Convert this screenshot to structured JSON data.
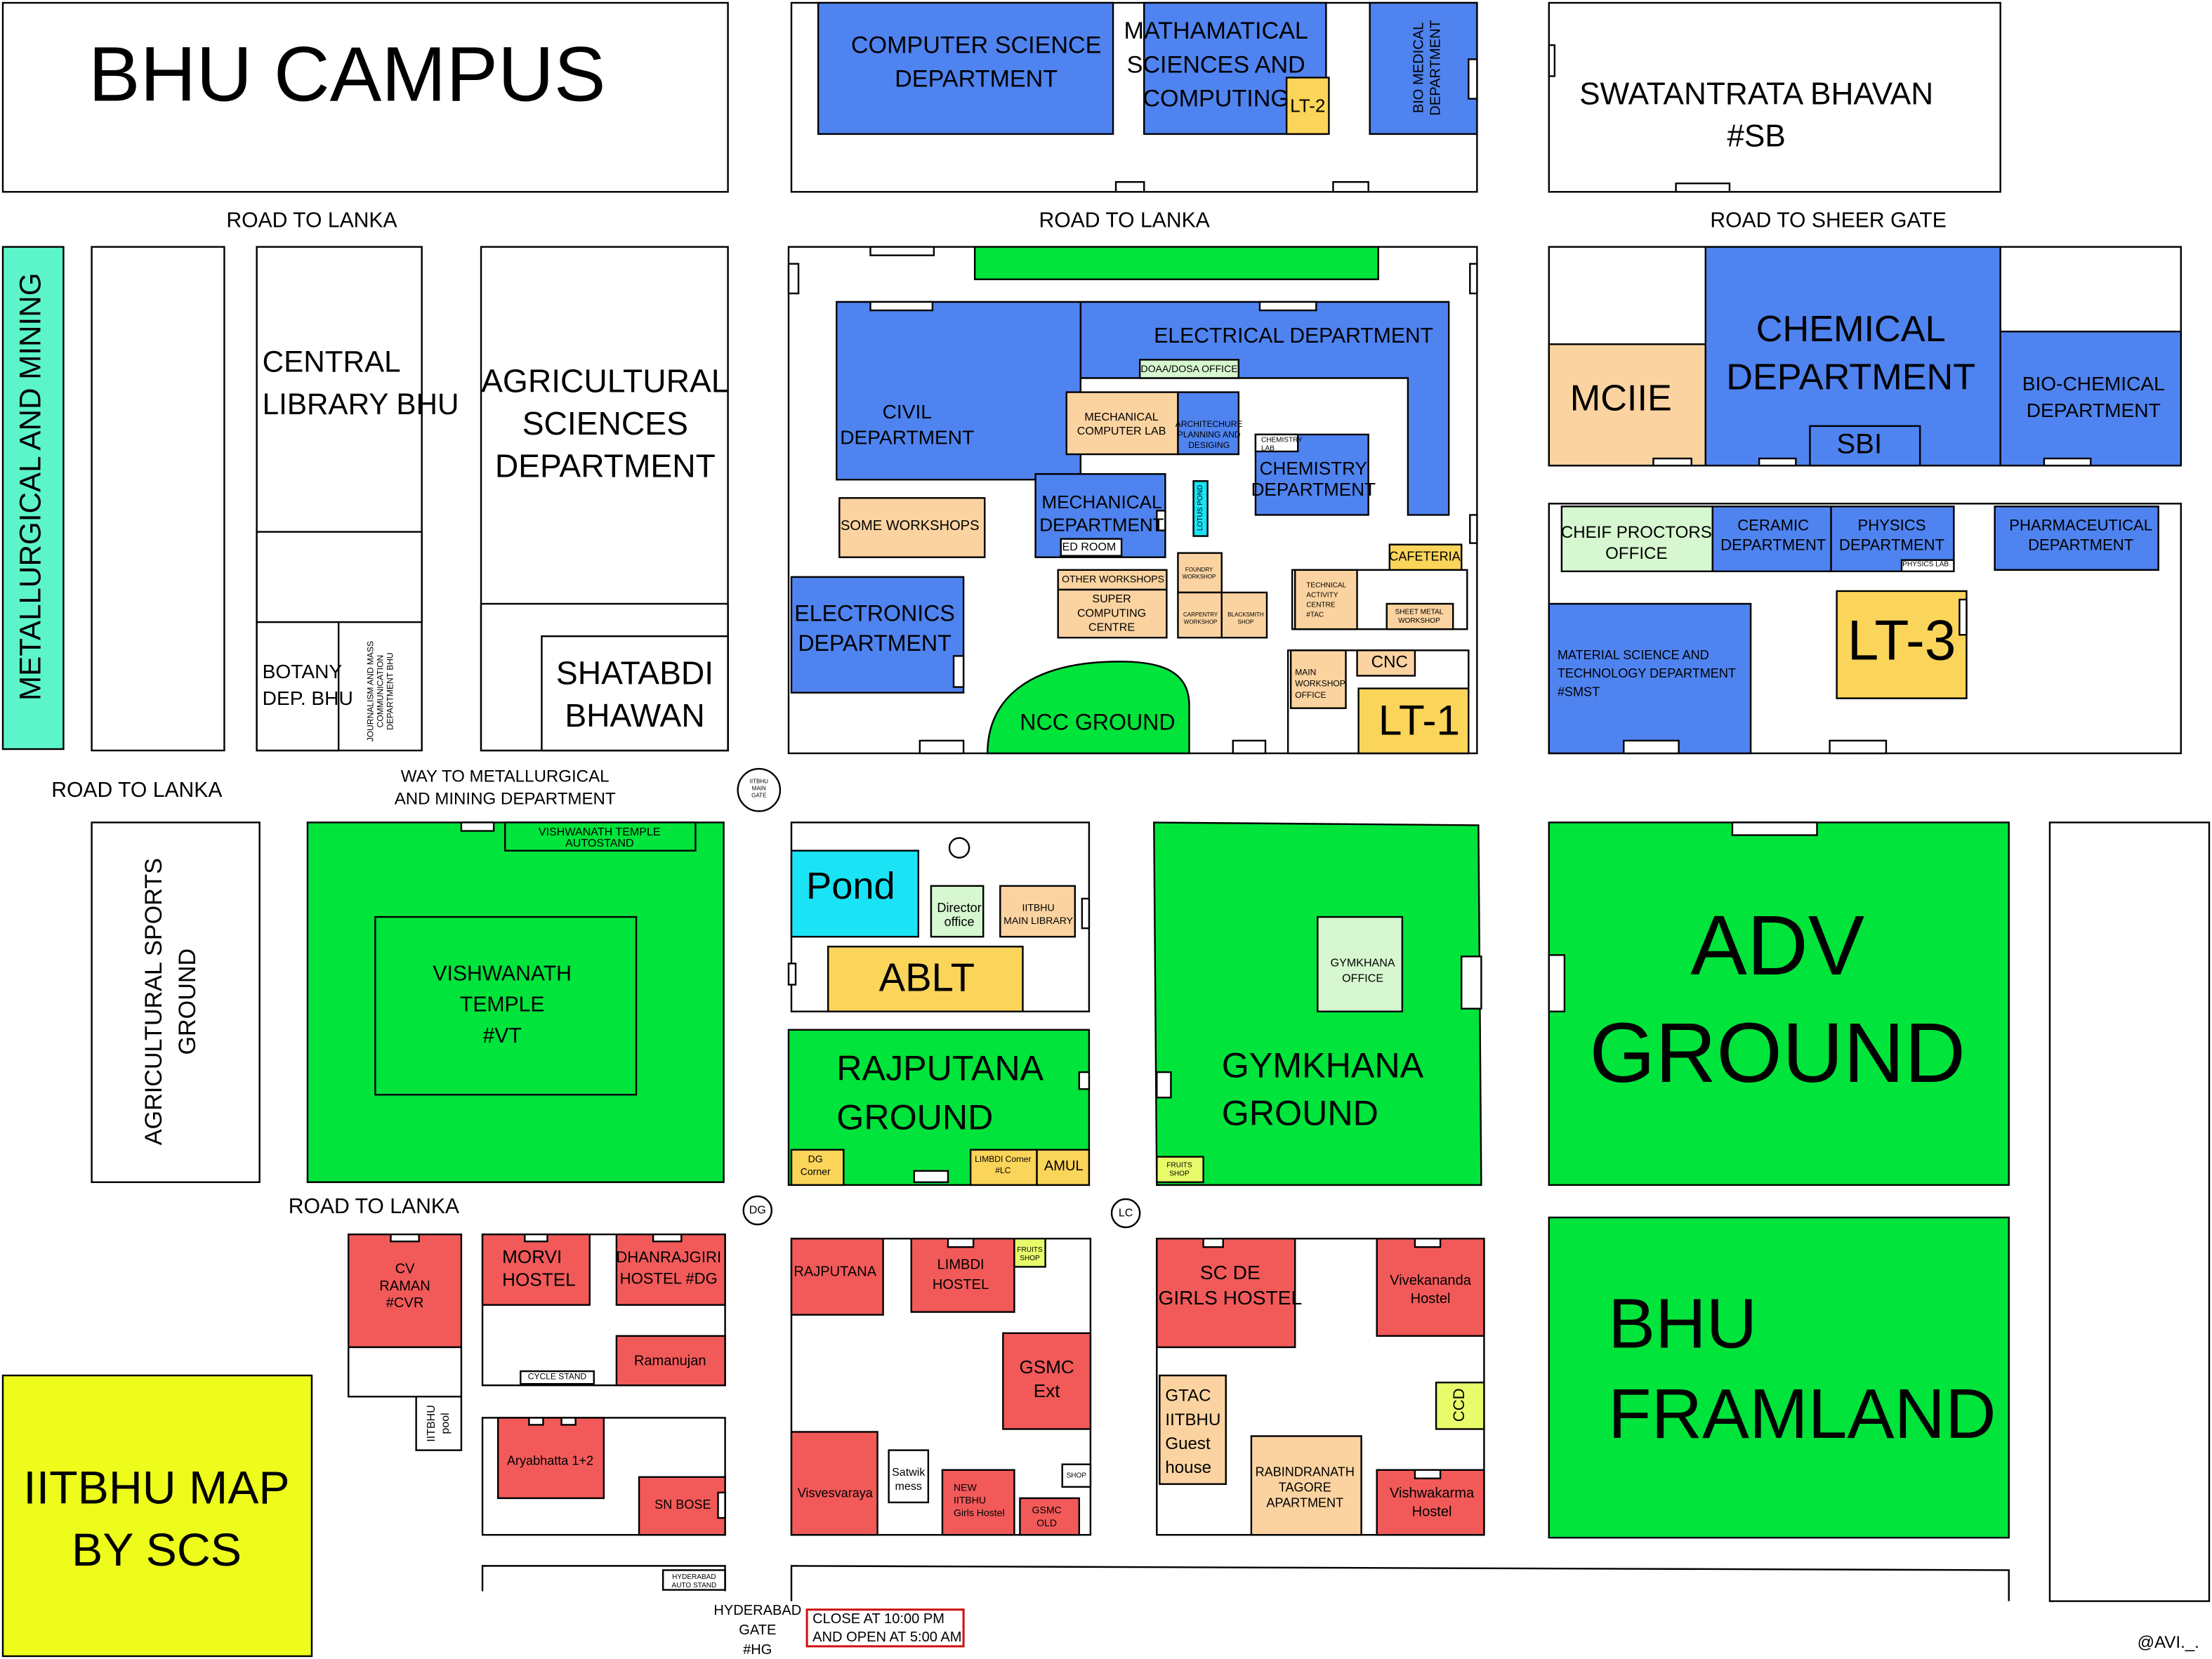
{
  "places": [
    [
      "BHU CAMPUS"
    ],
    [
      "COMPUTER SCIENCE",
      "DEPARTMENT"
    ],
    [
      "MATHAMATICAL",
      "SCIENCES AND",
      "COMPUTING"
    ],
    [
      "LT-2"
    ],
    [
      "BIO MEDICAL",
      "DEPARTMENT"
    ],
    [
      "SWATANTRATA BHAVAN",
      "#SB"
    ],
    [
      "ROAD TO LANKA"
    ],
    [
      "ROAD TO LANKA"
    ],
    [
      "ROAD TO SHEER GATE"
    ],
    [
      "METALLURGICAL AND MINING"
    ],
    [
      "CENTRAL",
      "LIBRARY BHU"
    ],
    [
      "BOTANY",
      "DEP. BHU"
    ],
    [
      "JOURNALISM AND MASS",
      "COMMUNICATION",
      "DEPARTMENT BHU"
    ],
    [
      "AGRICULTURAL",
      "SCIENCES",
      "DEPARTMENT"
    ],
    [
      "SHATABDI",
      "BHAWAN"
    ],
    [
      "ELECTRICAL DEPARTMENT"
    ],
    [
      "DOAA/DOSA OFFICE"
    ],
    [
      "CIVIL",
      "DEPARTMENT"
    ],
    [
      "MECHANICAL",
      "COMPUTER LAB"
    ],
    [
      "ARCHITECHURE",
      "PLANNING AND",
      "DESIGING"
    ],
    [
      "CHEMISTRY",
      "LAB"
    ],
    [
      "CHEMISTRY",
      "DEPARTMENT"
    ],
    [
      "SOME WORKSHOPS"
    ],
    [
      "MECHANICAL",
      "DEPARTMENT"
    ],
    [
      "ED ROOM"
    ],
    [
      "LOTUS POND"
    ],
    [
      "OTHER WORKSHOPS"
    ],
    [
      "SUPER",
      "COMPUTING",
      "CENTRE"
    ],
    [
      "FOUNDRY",
      "WORKSHOP"
    ],
    [
      "CARPENTRY",
      "WORKSHOP"
    ],
    [
      "BLACKSMITH",
      "SHOP"
    ],
    [
      "TECHNICAL",
      "ACTIVITY",
      "CENTRE",
      "#TAC"
    ],
    [
      "CAFETERIA"
    ],
    [
      "SHEET METAL",
      "WORKSHOP"
    ],
    [
      "ELECTRONICS",
      "DEPARTMENT"
    ],
    [
      "NCC GROUND"
    ],
    [
      "MAIN",
      "WORKSHOP",
      "OFFICE"
    ],
    [
      "CNC"
    ],
    [
      "LT-1"
    ],
    [
      "MCIIE"
    ],
    [
      "CHEMICAL",
      "DEPARTMENT"
    ],
    [
      "SBI"
    ],
    [
      "BIO-CHEMICAL",
      "DEPARTMENT"
    ],
    [
      "CHEIF PROCTORS",
      "OFFICE"
    ],
    [
      "CERAMIC",
      "DEPARTMENT"
    ],
    [
      "PHYSICS",
      "DEPARTMENT"
    ],
    [
      "PHYSICS LAB"
    ],
    [
      "PHARMACEUTICAL",
      "DEPARTMENT"
    ],
    [
      "MATERIAL SCIENCE AND",
      "TECHNOLOGY DEPARTMENT",
      "#SMST"
    ],
    [
      "LT-3"
    ],
    [
      "ROAD TO LANKA"
    ],
    [
      "WAY TO METALLURGICAL",
      "AND MINING DEPARTMENT"
    ],
    [
      "IITBHU",
      "MAIN",
      "GATE"
    ],
    [
      "AGRICULTURAL SPORTS",
      "GROUND"
    ],
    [
      "VISHWANATH TEMPLE",
      "AUTOSTAND"
    ],
    [
      "VISHWANATH",
      "TEMPLE",
      "#VT"
    ],
    [
      "Pond"
    ],
    [
      "Director",
      "office"
    ],
    [
      "IITBHU",
      "MAIN LIBRARY"
    ],
    [
      "ABLT"
    ],
    [
      "RAJPUTANA",
      "GROUND"
    ],
    [
      "DG",
      "Corner"
    ],
    [
      "LIMBDI Corner",
      "#LC"
    ],
    [
      "AMUL"
    ],
    [
      "GYMKHANA",
      "OFFICE"
    ],
    [
      "GYMKHANA",
      "GROUND"
    ],
    [
      "FRUITS",
      "SHOP"
    ],
    [
      "ADV",
      "GROUND"
    ],
    [
      "BHU",
      "FRAMLAND"
    ],
    [
      "ROAD TO LANKA"
    ],
    [
      "DG"
    ],
    [
      "LC"
    ],
    [
      "CV",
      "RAMAN",
      "#CVR"
    ],
    [
      "MORVI",
      "HOSTEL"
    ],
    [
      "DHANRAJGIRI",
      "HOSTEL #DG"
    ],
    [
      "Ramanujan"
    ],
    [
      "CYCLE STAND"
    ],
    [
      "IITBHU",
      "pool"
    ],
    [
      "Aryabhatta 1+2"
    ],
    [
      "SN BOSE"
    ],
    [
      "RAJPUTANA"
    ],
    [
      "LIMBDI",
      "HOSTEL"
    ],
    [
      "FRUITS",
      "SHOP"
    ],
    [
      "GSMC",
      "Ext"
    ],
    [
      "Visvesvaraya"
    ],
    [
      "Satwik",
      "mess"
    ],
    [
      "NEW",
      "IITBHU",
      "Girls Hostel"
    ],
    [
      "GSMC",
      "OLD"
    ],
    [
      "SHOP"
    ],
    [
      "SC DE",
      "GIRLS HOSTEL"
    ],
    [
      "Vivekananda",
      "Hostel"
    ],
    [
      "GTAC",
      "IITBHU",
      "Guest",
      "house"
    ],
    [
      "CCD"
    ],
    [
      "RABINDRANATH",
      "TAGORE",
      "APARTMENT"
    ],
    [
      "Vishwakarma",
      "Hostel"
    ],
    [
      "IITBHU MAP",
      "BY SCS"
    ],
    [
      "HYDERABAD",
      "AUTO STAND"
    ],
    [
      "HYDERABAD",
      "GATE",
      "#HG"
    ],
    [
      "CLOSE AT 10:00 PM",
      "AND OPEN AT 5:00 AM"
    ],
    [
      "@AVI._."
    ]
  ]
}
